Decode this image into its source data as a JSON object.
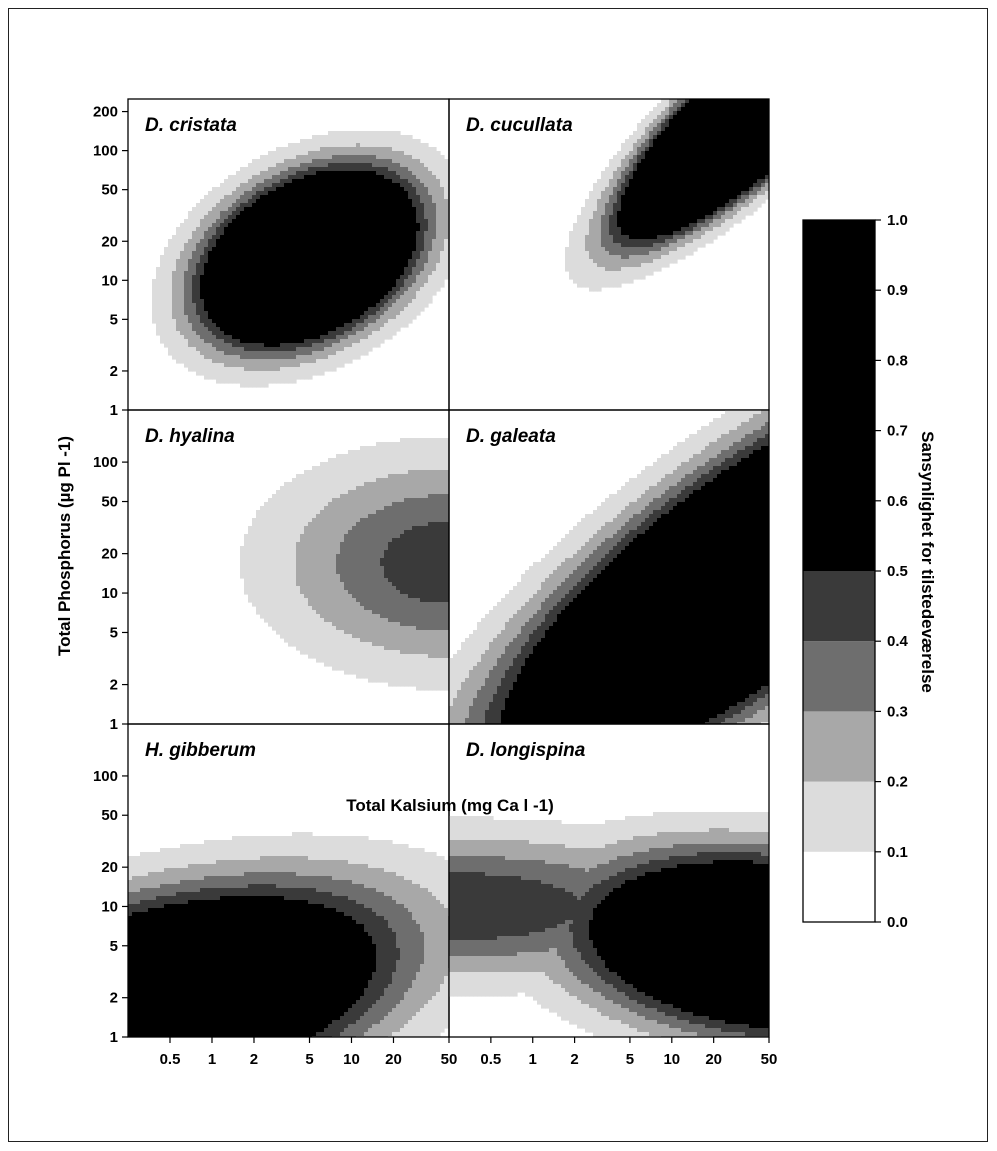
{
  "chart_data": {
    "type": "heatmap",
    "xlabel": "Total Kalsium (mg Ca l -1)",
    "ylabel": "Total Phosphorus (µg Pl -1)",
    "x_scale": "log",
    "y_scale": "log",
    "xlim": [
      0.25,
      50
    ],
    "x_ticks": [
      "0.5",
      "1",
      "2",
      "5",
      "10",
      "20",
      "50"
    ],
    "x_tick_values": [
      0.5,
      1,
      2,
      5,
      10,
      20,
      50
    ],
    "colorbar": {
      "label": "Sansynlighet for tilstedeværelse",
      "ticks": [
        "0.0",
        "0.1",
        "0.2",
        "0.3",
        "0.4",
        "0.5",
        "0.6",
        "0.7",
        "0.8",
        "0.9",
        "1.0"
      ],
      "levels": [
        0,
        0.1,
        0.2,
        0.3,
        0.4,
        0.5,
        1.0
      ],
      "colors": [
        "#ffffff",
        "#dcdcdc",
        "#a8a8a8",
        "#6e6e6e",
        "#3a3a3a",
        "#000000"
      ]
    },
    "panels": [
      {
        "title": "D. cristata",
        "ylim": [
          1,
          250
        ],
        "y_ticks": [
          "1",
          "2",
          "5",
          "10",
          "20",
          "50",
          "100",
          "200"
        ],
        "y_tick_values": [
          1,
          2,
          5,
          10,
          20,
          50,
          100,
          200
        ],
        "peak_probability": 1.0,
        "optimum": {
          "ca": 5,
          "tp": 15
        },
        "contours": [
          {
            "level": 0.1,
            "ca": [
              0.9,
              25
            ],
            "tp": [
              3,
              150
            ]
          },
          {
            "level": 0.2,
            "ca": [
              1.1,
              20
            ],
            "tp": [
              3.5,
              120
            ]
          },
          {
            "level": 0.3,
            "ca": [
              1.4,
              16
            ],
            "tp": [
              4.2,
              90
            ]
          },
          {
            "level": 0.5,
            "ca": [
              1.7,
              12
            ],
            "tp": [
              5,
              75
            ]
          }
        ]
      },
      {
        "title": "D. cucullata",
        "ylim": [
          1,
          250
        ],
        "peak_probability": 1.0,
        "optimum": {
          "ca": 50,
          "tp": 250
        },
        "lower_limit_0.1": {
          "ca": 4,
          "tp": 13
        }
      },
      {
        "title": "D. hyalina",
        "ylim": [
          1,
          250
        ],
        "y_ticks": [
          "1",
          "2",
          "5",
          "10",
          "20",
          "50",
          "100"
        ],
        "y_tick_values": [
          1,
          2,
          5,
          10,
          20,
          50,
          100
        ],
        "peak_probability": 0.5,
        "optimum": {
          "ca": 50,
          "tp": 17
        },
        "lower_limit_0.1": {
          "ca": 3.5,
          "tp": 15
        }
      },
      {
        "title": "D. galeata",
        "ylim": [
          1,
          250
        ],
        "peak_probability": 1.0,
        "optimum": {
          "ca": 30,
          "tp": 12
        },
        "lower_limit_0.1": {
          "ca": 0.25,
          "tp": 1
        }
      },
      {
        "title": "H. gibberum",
        "ylim": [
          1,
          250
        ],
        "y_ticks": [
          "1",
          "2",
          "5",
          "10",
          "20",
          "50",
          "100"
        ],
        "y_tick_values": [
          1,
          2,
          5,
          10,
          20,
          50,
          100
        ],
        "peak_probability": 1.0,
        "optimum": {
          "ca": 0.5,
          "tp": 2
        },
        "upper_limit_0.1": {
          "ca": 25,
          "tp": 27
        }
      },
      {
        "title": "D. longispina",
        "ylim": [
          1,
          250
        ],
        "peak_probability": 1.0,
        "optimum": {
          "ca": 50,
          "tp": 5
        },
        "band_0.3": {
          "tp": [
            3.5,
            30
          ]
        }
      }
    ]
  }
}
